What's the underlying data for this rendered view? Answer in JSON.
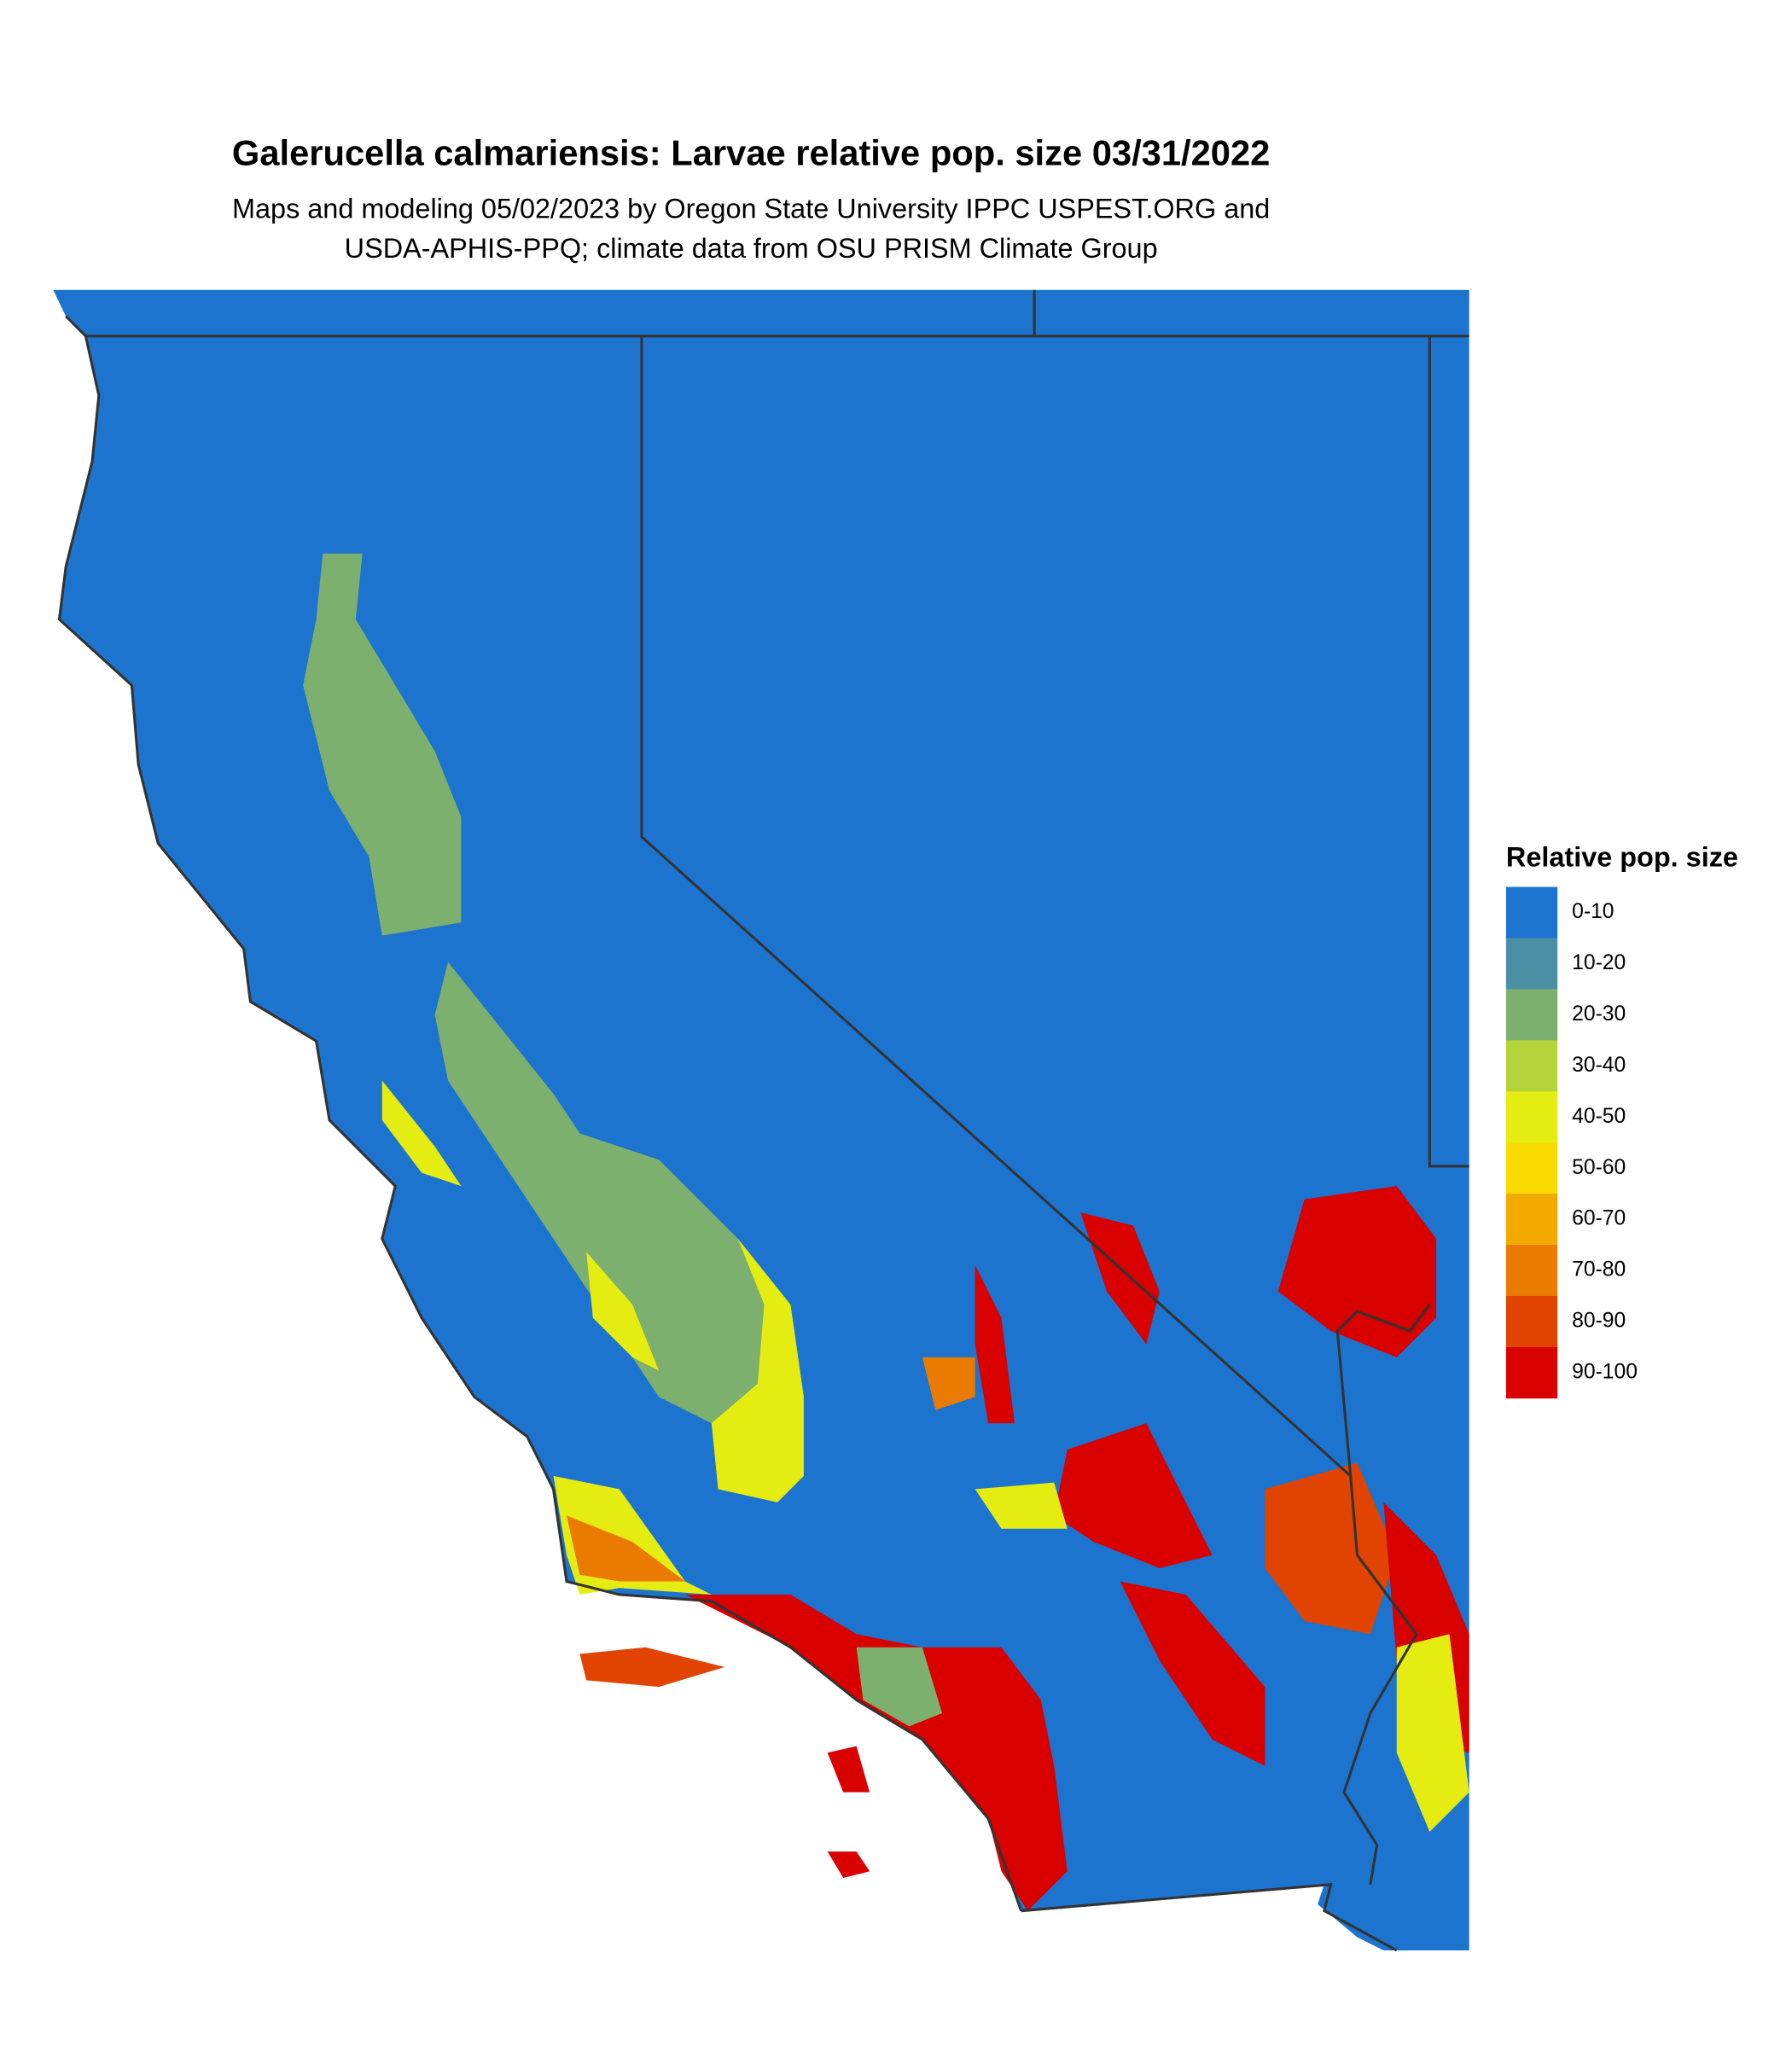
{
  "title": "Galerucella calmariensis: Larvae relative pop. size 03/31/2022",
  "subtitle": [
    "Maps and modeling 05/02/2023 by Oregon State University IPPC USPEST.ORG and",
    "USDA-APHIS-PPQ; climate data from OSU PRISM Climate Group"
  ],
  "legend": {
    "title": "Relative pop. size",
    "items": [
      {
        "label": "0-10",
        "color": "#1c74cf"
      },
      {
        "label": "10-20",
        "color": "#4a8fa3"
      },
      {
        "label": "20-30",
        "color": "#7daf6f"
      },
      {
        "label": "30-40",
        "color": "#b5d33b"
      },
      {
        "label": "40-50",
        "color": "#e5ec12"
      },
      {
        "label": "50-60",
        "color": "#f9db00"
      },
      {
        "label": "60-70",
        "color": "#f3aa00"
      },
      {
        "label": "70-80",
        "color": "#ea7b00"
      },
      {
        "label": "80-90",
        "color": "#e04400"
      },
      {
        "label": "90-100",
        "color": "#d90000"
      }
    ]
  }
}
